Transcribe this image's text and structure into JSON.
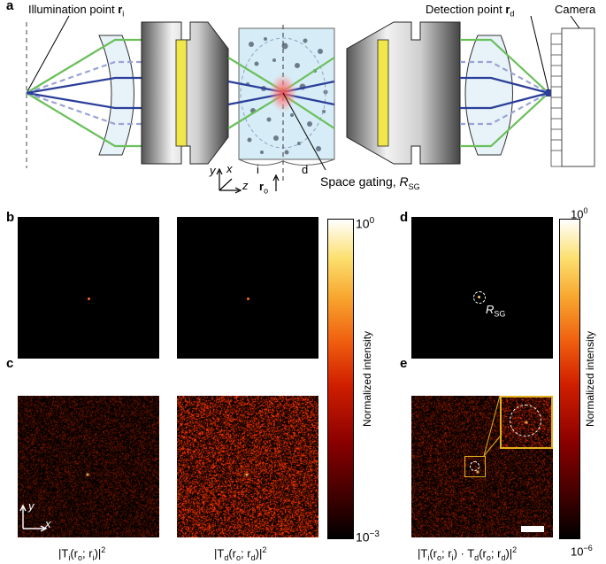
{
  "panel_a": {
    "letter": "a",
    "illumination_label": "Illumination point",
    "illumination_sym": "r",
    "illumination_sub": "i",
    "detection_label": "Detection point",
    "detection_sym": "r",
    "detection_sub": "d",
    "camera_label": "Camera",
    "axis_y": "y",
    "axis_x": "x",
    "axis_z": "z",
    "side_i": "i",
    "side_d": "d",
    "origin_sym": "r",
    "origin_sub": "o",
    "gating_label": "Space gating,",
    "gating_sym": "R",
    "gating_sub": "SG"
  },
  "panel_b": {
    "letter": "b"
  },
  "panel_c": {
    "letter": "c",
    "axis_y": "y",
    "axis_x": "x",
    "caption_left": "|T",
    "caption_left_sub": "i",
    "caption_left_args": "(r",
    "caption_left_a1": "o",
    "caption_left_mid": "; r",
    "caption_left_a2": "i",
    "caption_left_end": ")|",
    "caption_left_exp": "2",
    "caption_right": "|T",
    "caption_right_sub": "d",
    "caption_right_args": "(r",
    "caption_right_a1": "o",
    "caption_right_mid": "; r",
    "caption_right_a2": "d",
    "caption_right_end": ")|",
    "caption_right_exp": "2"
  },
  "panel_d": {
    "letter": "d",
    "marker_sym": "R",
    "marker_sub": "SG"
  },
  "panel_e": {
    "letter": "e",
    "caption": "|T",
    "cap_sub1": "i",
    "cap_p1": "(r",
    "cap_a1": "o",
    "cap_p2": "; r",
    "cap_a2": "i",
    "cap_p3": ") · T",
    "cap_sub2": "d",
    "cap_p4": "(r",
    "cap_a3": "o",
    "cap_p5": "; r",
    "cap_a4": "d",
    "cap_p6": ")|",
    "cap_exp": "2"
  },
  "colorbar_left": {
    "label": "Normalized intensity",
    "top_base": "10",
    "top_exp": "0",
    "bottom_base": "10",
    "bottom_exp": "−3"
  },
  "colorbar_right": {
    "label": "Normalized intensity",
    "top_base": "10",
    "top_exp": "0",
    "bottom_base": "10",
    "bottom_exp": "−6"
  },
  "colors": {
    "green_ray": "#6abf5a",
    "blue_ray": "#2b3f9a",
    "dashed_ray": "#9aa3d4",
    "filter_yellow": "#f1e64a",
    "sample_fill": "#d6ecf7",
    "lens_fill": "#e7f3f9",
    "highlight_box": "#e0b020"
  }
}
